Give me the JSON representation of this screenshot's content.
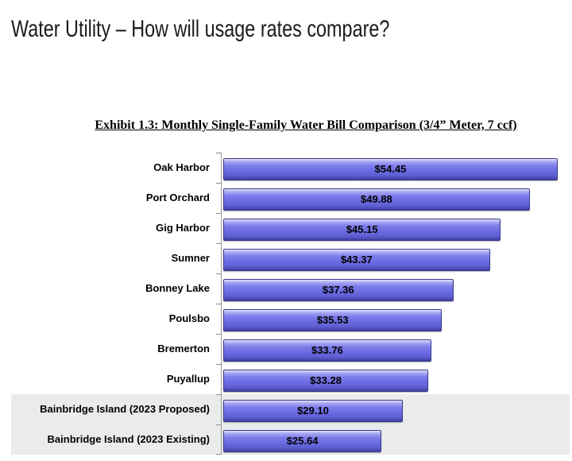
{
  "page": {
    "title": "Water Utility – How will usage rates compare?"
  },
  "chart_data": {
    "type": "bar",
    "orientation": "horizontal",
    "title": "Exhibit 1.3: Monthly Single-Family Water Bill Comparison (3/4” Meter, 7 ccf)",
    "categories": [
      "Oak Harbor",
      "Port Orchard",
      "Gig Harbor",
      "Sumner",
      "Bonney Lake",
      "Poulsbo",
      "Bremerton",
      "Puyallup",
      "Bainbridge Island (2023 Proposed)",
      "Bainbridge Island (2023 Existing)"
    ],
    "values": [
      54.45,
      49.88,
      45.15,
      43.37,
      37.36,
      35.53,
      33.76,
      33.28,
      29.1,
      25.64
    ],
    "value_labels": [
      "$54.45",
      "$49.88",
      "$45.15",
      "$43.37",
      "$37.36",
      "$35.53",
      "$33.76",
      "$33.28",
      "$29.10",
      "$25.64"
    ],
    "highlighted_rows": [
      8,
      9
    ],
    "xlim": [
      0,
      56
    ],
    "grid": false,
    "legend": false,
    "value_label_position": "center-inside-bar",
    "colors": {
      "bar": "#6c6ce3",
      "bar_border": "#3a3a8e",
      "highlight_band": "#e9eceb",
      "axis": "#9a9a9a",
      "text": "#000000"
    }
  }
}
